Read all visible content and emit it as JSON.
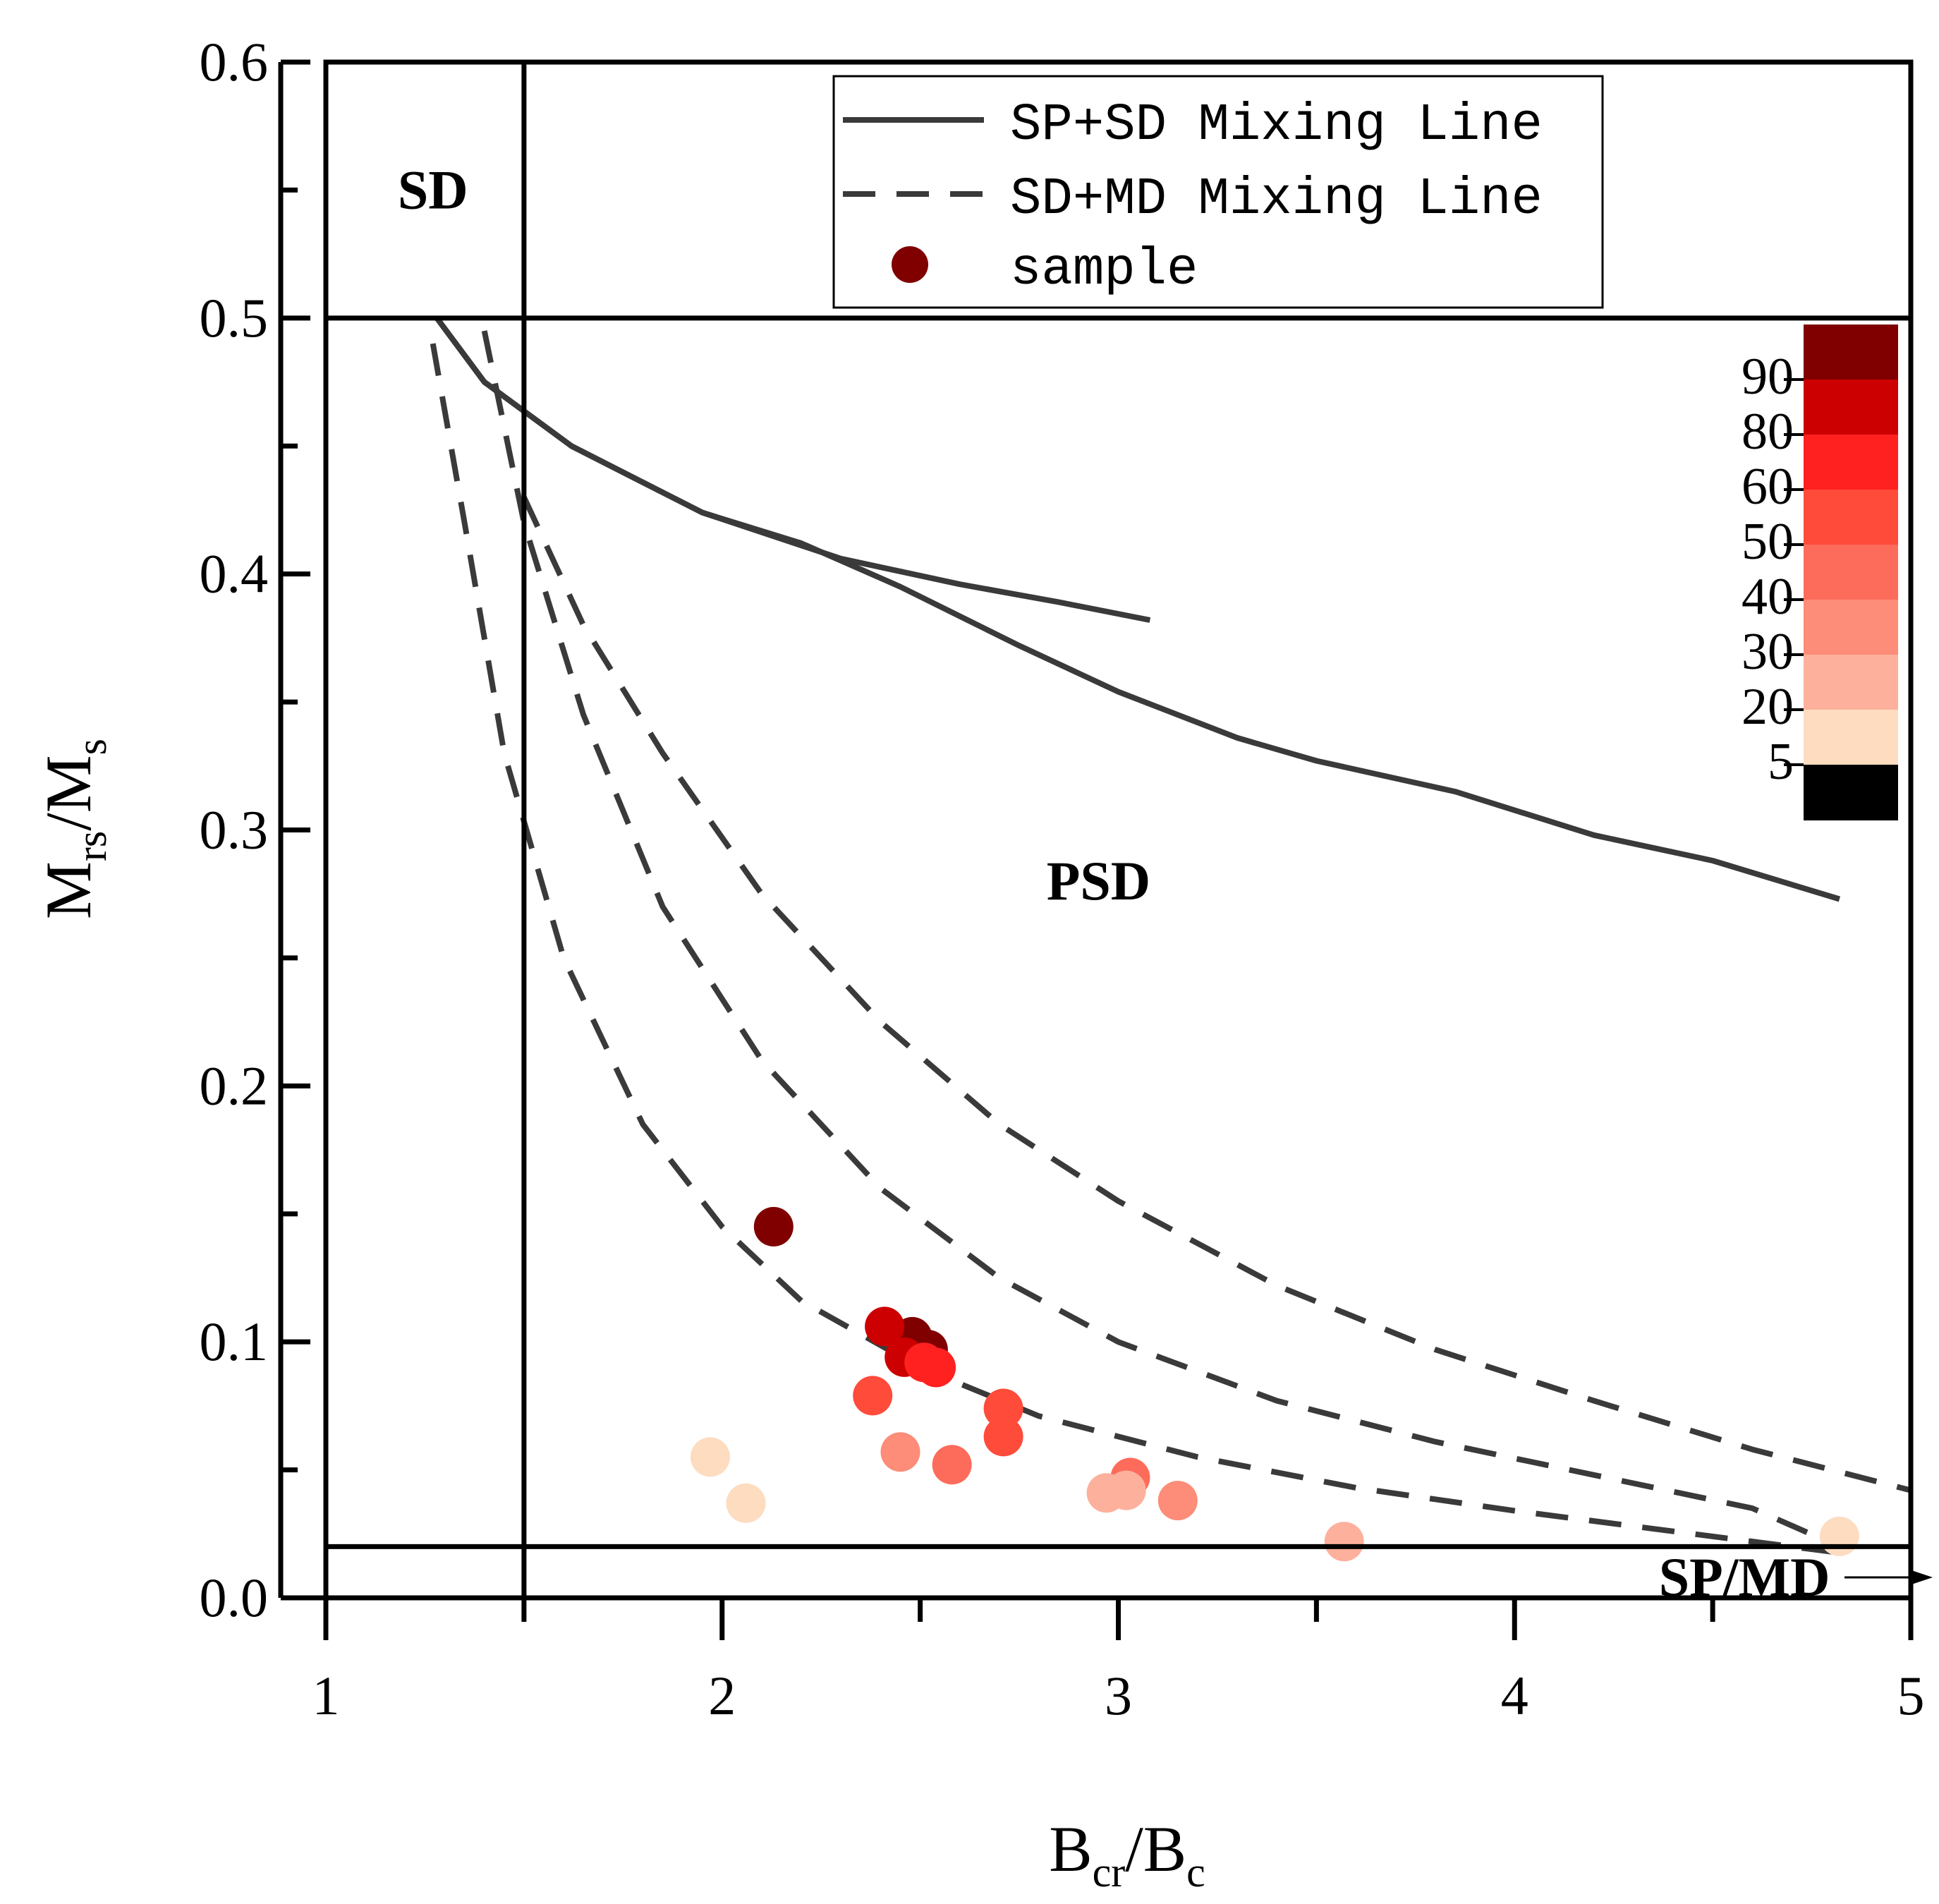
{
  "chart_data": {
    "type": "scatter",
    "xlabel": {
      "main": "B",
      "sub": "cr",
      "sep": "/",
      "main2": "B",
      "sub2": "c"
    },
    "ylabel": {
      "main": "M",
      "sub": "rs",
      "sep": "/",
      "main2": "M",
      "sub2": "s"
    },
    "xlim": [
      1,
      5
    ],
    "ylim": [
      0,
      0.6
    ],
    "x_ticks": [
      {
        "value": 1,
        "label": "1"
      },
      {
        "value": 2,
        "label": "2"
      },
      {
        "value": 3,
        "label": "3"
      },
      {
        "value": 4,
        "label": "4"
      },
      {
        "value": 5,
        "label": "5"
      }
    ],
    "y_ticks": [
      {
        "value": 0.0,
        "label": "0.0"
      },
      {
        "value": 0.1,
        "label": "0.1"
      },
      {
        "value": 0.2,
        "label": "0.2"
      },
      {
        "value": 0.3,
        "label": "0.3"
      },
      {
        "value": 0.4,
        "label": "0.4"
      },
      {
        "value": 0.5,
        "label": "0.5"
      },
      {
        "value": 0.6,
        "label": "0.6"
      }
    ],
    "x_minor_ticks": [
      1.5,
      2.5,
      3.5,
      4.5
    ],
    "y_minor_ticks": [
      0.05,
      0.15,
      0.25,
      0.35,
      0.45,
      0.55
    ],
    "boundaries": {
      "x": 1.5,
      "y_upper": 0.5,
      "y_lower": 0.02
    },
    "regions": [
      {
        "label": "SD",
        "x": 1.27,
        "y": 0.55
      },
      {
        "label": "PSD",
        "x": 2.95,
        "y": 0.28
      },
      {
        "label": "SP/MD",
        "x": 4.58,
        "y": 0.008,
        "arrow": true
      }
    ],
    "legend": {
      "position": "top-center",
      "entries": [
        {
          "label": "SP+SD Mixing Line",
          "style": "solid"
        },
        {
          "label": "SD+MD Mixing Line",
          "style": "dashed"
        },
        {
          "label": "sample",
          "style": "marker"
        }
      ]
    },
    "series": [
      {
        "name": "SP+SD Mixing Line 1",
        "style": "solid",
        "color": "#3a3a3a",
        "points": [
          [
            1.28,
            0.5
          ],
          [
            1.4,
            0.475
          ],
          [
            1.62,
            0.45
          ],
          [
            1.95,
            0.424
          ],
          [
            2.3,
            0.406
          ],
          [
            2.6,
            0.396
          ],
          [
            2.85,
            0.389
          ],
          [
            3.08,
            0.382
          ]
        ]
      },
      {
        "name": "SP+SD Mixing Line 2",
        "style": "solid",
        "color": "#3a3a3a",
        "points": [
          [
            1.28,
            0.5
          ],
          [
            1.4,
            0.475
          ],
          [
            1.62,
            0.45
          ],
          [
            1.95,
            0.424
          ],
          [
            2.2,
            0.412
          ],
          [
            2.45,
            0.395
          ],
          [
            2.75,
            0.372
          ],
          [
            3.0,
            0.354
          ],
          [
            3.3,
            0.336
          ],
          [
            3.5,
            0.327
          ],
          [
            3.85,
            0.315
          ],
          [
            4.2,
            0.298
          ],
          [
            4.5,
            0.288
          ],
          [
            4.82,
            0.273
          ]
        ]
      },
      {
        "name": "SD+MD Mixing Line 1",
        "style": "dashed",
        "color": "#3a3a3a",
        "points": [
          [
            1.27,
            0.49
          ],
          [
            1.35,
            0.42
          ],
          [
            1.45,
            0.33
          ],
          [
            1.6,
            0.25
          ],
          [
            1.8,
            0.185
          ],
          [
            2.0,
            0.145
          ],
          [
            2.2,
            0.116
          ],
          [
            2.5,
            0.09
          ],
          [
            2.8,
            0.071
          ],
          [
            3.2,
            0.055
          ],
          [
            3.6,
            0.043
          ],
          [
            4.0,
            0.034
          ],
          [
            4.4,
            0.026
          ],
          [
            4.8,
            0.018
          ]
        ]
      },
      {
        "name": "SD+MD Mixing Line 2",
        "style": "dashed",
        "color": "#3a3a3a",
        "points": [
          [
            1.4,
            0.495
          ],
          [
            1.5,
            0.42
          ],
          [
            1.65,
            0.345
          ],
          [
            1.85,
            0.27
          ],
          [
            2.1,
            0.21
          ],
          [
            2.4,
            0.16
          ],
          [
            2.7,
            0.125
          ],
          [
            3.0,
            0.1
          ],
          [
            3.4,
            0.077
          ],
          [
            3.8,
            0.061
          ],
          [
            4.2,
            0.048
          ],
          [
            4.6,
            0.035
          ],
          [
            4.82,
            0.02
          ]
        ]
      },
      {
        "name": "SD+MD Mixing Line 3",
        "style": "dashed",
        "color": "#3a3a3a",
        "points": [
          [
            1.5,
            0.43
          ],
          [
            1.65,
            0.38
          ],
          [
            1.85,
            0.33
          ],
          [
            2.1,
            0.275
          ],
          [
            2.4,
            0.225
          ],
          [
            2.7,
            0.185
          ],
          [
            3.0,
            0.155
          ],
          [
            3.4,
            0.122
          ],
          [
            3.8,
            0.097
          ],
          [
            4.2,
            0.077
          ],
          [
            4.6,
            0.058
          ],
          [
            5.0,
            0.042
          ]
        ]
      }
    ],
    "samples": [
      {
        "x": 2.13,
        "y": 0.145,
        "v": 95
      },
      {
        "x": 2.48,
        "y": 0.102,
        "v": 93
      },
      {
        "x": 2.52,
        "y": 0.097,
        "v": 92
      },
      {
        "x": 2.41,
        "y": 0.106,
        "v": 85
      },
      {
        "x": 2.46,
        "y": 0.094,
        "v": 82
      },
      {
        "x": 2.51,
        "y": 0.092,
        "v": 78
      },
      {
        "x": 2.54,
        "y": 0.09,
        "v": 75
      },
      {
        "x": 2.71,
        "y": 0.074,
        "v": 55
      },
      {
        "x": 2.71,
        "y": 0.063,
        "v": 55
      },
      {
        "x": 2.38,
        "y": 0.079,
        "v": 52
      },
      {
        "x": 2.58,
        "y": 0.052,
        "v": 45
      },
      {
        "x": 3.03,
        "y": 0.047,
        "v": 45
      },
      {
        "x": 2.45,
        "y": 0.057,
        "v": 35
      },
      {
        "x": 3.15,
        "y": 0.038,
        "v": 33
      },
      {
        "x": 3.02,
        "y": 0.042,
        "v": 25
      },
      {
        "x": 2.97,
        "y": 0.041,
        "v": 22
      },
      {
        "x": 3.57,
        "y": 0.022,
        "v": 28
      },
      {
        "x": 1.97,
        "y": 0.055,
        "v": 10
      },
      {
        "x": 2.06,
        "y": 0.037,
        "v": 10
      },
      {
        "x": 4.82,
        "y": 0.024,
        "v": 10
      }
    ],
    "colorbar": {
      "position": "top-right",
      "levels": [
        {
          "min": 90,
          "max": 100,
          "color": "#800000"
        },
        {
          "min": 80,
          "max": 90,
          "color": "#cc0000"
        },
        {
          "min": 60,
          "max": 80,
          "color": "#ff2020"
        },
        {
          "min": 50,
          "max": 60,
          "color": "#ff4b3a"
        },
        {
          "min": 40,
          "max": 50,
          "color": "#fd6b5b"
        },
        {
          "min": 30,
          "max": 40,
          "color": "#fd8c78"
        },
        {
          "min": 20,
          "max": 30,
          "color": "#fdb09c"
        },
        {
          "min": 5,
          "max": 20,
          "color": "#fddcc0"
        },
        {
          "min": 0,
          "max": 5,
          "color": "#000000"
        }
      ],
      "tick_labels": [
        "90",
        "80",
        "60",
        "50",
        "40",
        "30",
        "20",
        "5"
      ]
    }
  }
}
